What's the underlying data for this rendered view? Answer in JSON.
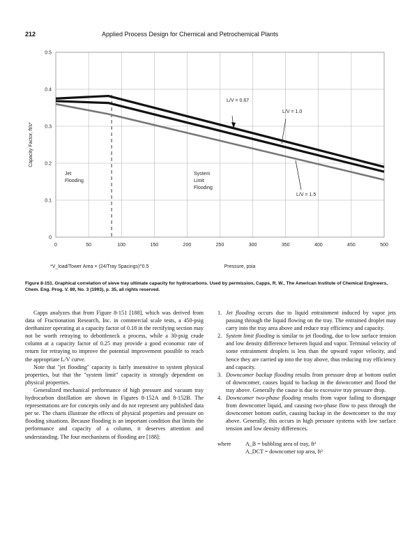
{
  "header": {
    "page_number": "212",
    "running_title": "Applied Process Design for Chemical and Petrochemical Plants"
  },
  "chart_data": {
    "type": "line",
    "title": "",
    "xlabel": "Pressure, psia",
    "ylabel": "Capacity Factor, ft/s*",
    "xlim": [
      0,
      500
    ],
    "ylim": [
      0,
      0.5
    ],
    "x_ticks": [
      "0",
      "50",
      "100",
      "150",
      "200",
      "250",
      "300",
      "350",
      "400",
      "450",
      "500"
    ],
    "y_ticks": [
      "0",
      "0.1",
      "0.2",
      "0.3",
      "0.4",
      "0.5"
    ],
    "footnote": "*V_load/Tower Area × (24/Tray Spacings)^0.5",
    "divider_x": 85,
    "series": [
      {
        "name": "L/V = 0.67",
        "x": [
          0,
          80,
          500
        ],
        "y": [
          0.375,
          0.382,
          0.19
        ]
      },
      {
        "name": "L/V = 1.0",
        "x": [
          0,
          80,
          500
        ],
        "y": [
          0.368,
          0.363,
          0.177
        ]
      },
      {
        "name": "L/V = 1.5",
        "x": [
          0,
          80,
          500
        ],
        "y": [
          0.36,
          0.333,
          0.155
        ]
      }
    ],
    "annotations": [
      {
        "text": "Jet Flooding",
        "region": "left"
      },
      {
        "text": "System Limit Flooding",
        "region": "middle"
      }
    ]
  },
  "caption": {
    "label": "Figure 8-151.",
    "text": "Graphical correlation of sieve tray ultimate capacity for hydrocarbons. Used by permission, Capps, R. W., The American Institute of Chemical Engineers, Chem. Eng. Prog. V. 89, No. 3 (1993), p. 35, all rights reserved."
  },
  "body": {
    "left": [
      "Capps analyzes that from Figure 8-151 [188], which was derived from data of Fractionation Research, Inc. in commercial scale tests, a 450-psig deethanizer operating at a capacity factor of 0.18 in the rectifying section may not be worth retraying to debottleneck a process, while a 30-psig crude column at a capacity factor of 0.25 may provide a good economic rate of return for retraying to improve the potential improvement possible to reach the appropriate L/V curve.",
      "Note that \"jet flooding\" capacity is fairly insensitive to system physical properties, but that the \"system limit\" capacity is strongly dependent on physical properties.",
      "Generalized mechanical performance of high pressure and vacuum tray hydrocarbon distillation are shown in Figures 8-152A and 8-152B. The representations are for concepts only and do not represent any published data per se. The charts illustrate the effects of physical properties and pressure on flooding situations. Because flooding is an important condition that limits the performance and capacity of a column, it deserves attention and understanding. The four mechanisms of flooding are [188]:"
    ],
    "right": [
      {
        "num": "1.",
        "term": "Jet flooding",
        "text": " occurs due to liquid entrainment induced by vapor jets passing through the liquid flowing on the tray. The entrained droplet may carry into the tray area above and reduce tray efficiency and capacity."
      },
      {
        "num": "2.",
        "term": "System limit flooding",
        "text": " is similar to jet flooding, due to low surface tension and low density difference between liquid and vapor. Terminal velocity of some entrainment droplets is less than the upward vapor velocity, and hence they are carried up into the tray above, thus reducing tray efficiency and capacity."
      },
      {
        "num": "3.",
        "term": "Downcomer backup flooding",
        "text": " results from pressure drop at bottom outlet of downcomer, causes liquid to backup in the downcomer and flood the tray above. Generally the cause is due to excessive tray pressure drop."
      },
      {
        "num": "4.",
        "term": "Downcomer two-phase flooding",
        "text": " results from vapor failing to disengage from downcomer liquid, and causing two-phase flow to pass through the downcomer bottom outlet, causing backup in the downcomer to the tray above. Generally, this occurs in high pressure systems with low surface tension and low density differences."
      }
    ],
    "where": "where",
    "defs": [
      "A_B = bubbling area of tray, ft²",
      "A_DCT = downcomer top area, ft²"
    ]
  }
}
